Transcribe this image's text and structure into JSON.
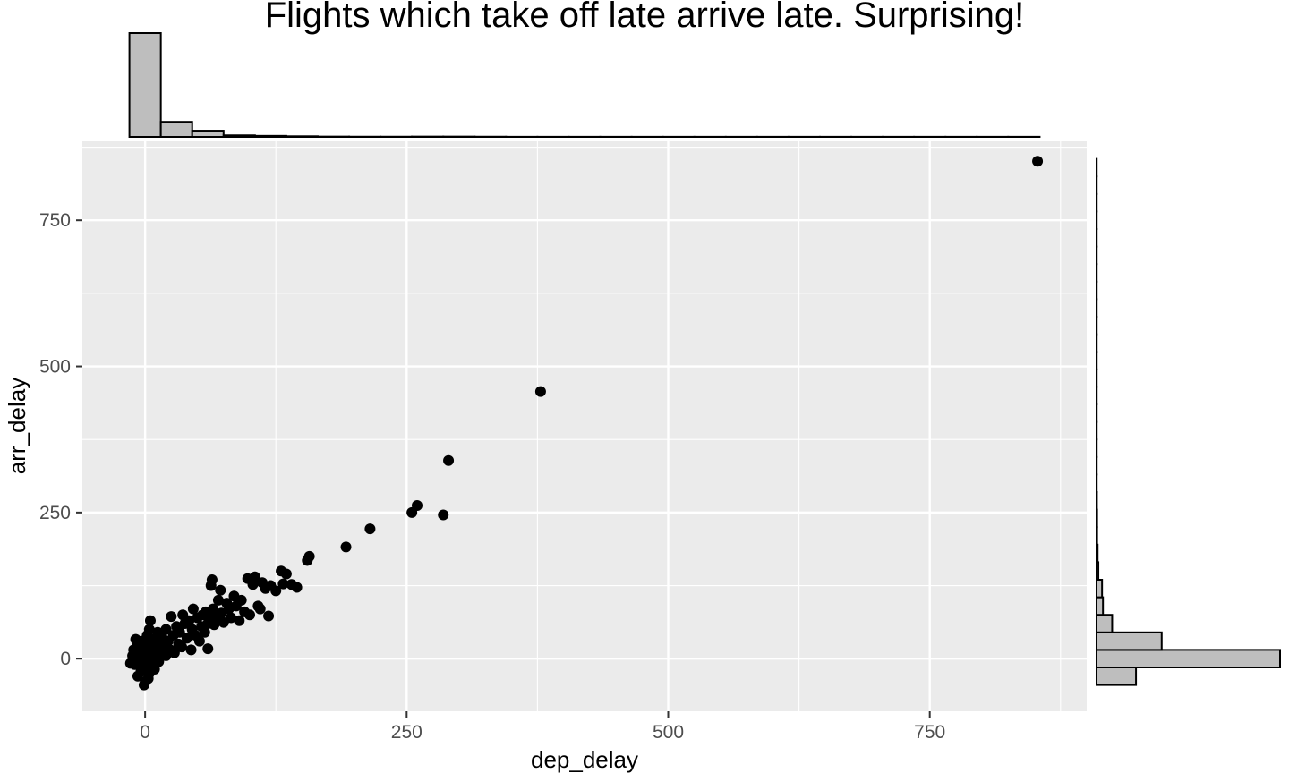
{
  "chart_data": {
    "type": "scatter",
    "title": "Flights which take off late arrive late. Surprising!",
    "xlabel": "dep_delay",
    "ylabel": "arr_delay",
    "xlim": [
      -60,
      900
    ],
    "ylim": [
      -90,
      885
    ],
    "x_ticks": [
      0,
      250,
      500,
      750
    ],
    "y_ticks": [
      0,
      250,
      500,
      750
    ],
    "grid": true,
    "colors": {
      "panel": "#ebebeb",
      "grid": "#ffffff",
      "point": "#000000",
      "hist_fill": "#bebebe",
      "hist_stroke": "#000000"
    },
    "points": [
      [
        -12,
        5
      ],
      [
        -10,
        -10
      ],
      [
        -8,
        20
      ],
      [
        -7,
        -30
      ],
      [
        -6,
        0
      ],
      [
        -5,
        12
      ],
      [
        -4,
        -22
      ],
      [
        -3,
        30
      ],
      [
        -2,
        8
      ],
      [
        -1,
        -5
      ],
      [
        0,
        15
      ],
      [
        0,
        -40
      ],
      [
        1,
        25
      ],
      [
        2,
        -15
      ],
      [
        2,
        40
      ],
      [
        3,
        5
      ],
      [
        4,
        -25
      ],
      [
        5,
        18
      ],
      [
        5,
        65
      ],
      [
        6,
        -8
      ],
      [
        7,
        30
      ],
      [
        8,
        10
      ],
      [
        9,
        -18
      ],
      [
        10,
        35
      ],
      [
        10,
        22
      ],
      [
        11,
        2
      ],
      [
        12,
        45
      ],
      [
        13,
        -5
      ],
      [
        14,
        28
      ],
      [
        15,
        12
      ],
      [
        -9,
        33
      ],
      [
        -6,
        18
      ],
      [
        -3,
        -12
      ],
      [
        0,
        2
      ],
      [
        3,
        -34
      ],
      [
        6,
        8
      ],
      [
        -14,
        -8
      ],
      [
        -11,
        15
      ],
      [
        -1,
        -45
      ],
      [
        4,
        50
      ],
      [
        16,
        38
      ],
      [
        18,
        20
      ],
      [
        20,
        50
      ],
      [
        20,
        5
      ],
      [
        22,
        30
      ],
      [
        24,
        15
      ],
      [
        25,
        72
      ],
      [
        27,
        40
      ],
      [
        28,
        10
      ],
      [
        30,
        55
      ],
      [
        32,
        25
      ],
      [
        33,
        45
      ],
      [
        35,
        20
      ],
      [
        36,
        75
      ],
      [
        38,
        60
      ],
      [
        40,
        35
      ],
      [
        42,
        65
      ],
      [
        44,
        15
      ],
      [
        45,
        50
      ],
      [
        46,
        85
      ],
      [
        48,
        40
      ],
      [
        50,
        70
      ],
      [
        52,
        30
      ],
      [
        54,
        55
      ],
      [
        55,
        75
      ],
      [
        57,
        45
      ],
      [
        58,
        80
      ],
      [
        60,
        60
      ],
      [
        60,
        17
      ],
      [
        62,
        70
      ],
      [
        63,
        125
      ],
      [
        64,
        135
      ],
      [
        65,
        85
      ],
      [
        66,
        58
      ],
      [
        68,
        72
      ],
      [
        70,
        100
      ],
      [
        72,
        117
      ],
      [
        73,
        78
      ],
      [
        75,
        62
      ],
      [
        78,
        95
      ],
      [
        80,
        85
      ],
      [
        82,
        70
      ],
      [
        85,
        107
      ],
      [
        87,
        90
      ],
      [
        90,
        65
      ],
      [
        92,
        100
      ],
      [
        95,
        80
      ],
      [
        98,
        137
      ],
      [
        100,
        75
      ],
      [
        103,
        127
      ],
      [
        105,
        140
      ],
      [
        108,
        90
      ],
      [
        110,
        85
      ],
      [
        112,
        130
      ],
      [
        115,
        120
      ],
      [
        118,
        73
      ],
      [
        120,
        125
      ],
      [
        125,
        116
      ],
      [
        130,
        150
      ],
      [
        132,
        128
      ],
      [
        135,
        145
      ],
      [
        140,
        127
      ],
      [
        145,
        122
      ],
      [
        155,
        168
      ],
      [
        157,
        175
      ],
      [
        192,
        191
      ],
      [
        215,
        222
      ],
      [
        255,
        250
      ],
      [
        260,
        262
      ],
      [
        285,
        246
      ],
      [
        290,
        339
      ],
      [
        378,
        457
      ],
      [
        853,
        851
      ]
    ],
    "top_histogram": {
      "bin_width": 30,
      "bins": [
        {
          "x0": -15,
          "x1": 15,
          "count": 1000
        },
        {
          "x0": 15,
          "x1": 45,
          "count": 145
        },
        {
          "x0": 45,
          "x1": 75,
          "count": 60
        },
        {
          "x0": 75,
          "x1": 105,
          "count": 15
        },
        {
          "x0": 105,
          "x1": 135,
          "count": 10
        },
        {
          "x0": 135,
          "x1": 165,
          "count": 6
        },
        {
          "x0": 165,
          "x1": 195,
          "count": 3
        },
        {
          "x0": 195,
          "x1": 225,
          "count": 2
        },
        {
          "x0": 225,
          "x1": 255,
          "count": 2
        },
        {
          "x0": 255,
          "x1": 285,
          "count": 3
        },
        {
          "x0": 285,
          "x1": 315,
          "count": 3
        },
        {
          "x0": 315,
          "x1": 345,
          "count": 2
        },
        {
          "x0": 345,
          "x1": 375,
          "count": 1
        },
        {
          "x0": 375,
          "x1": 405,
          "count": 1
        },
        {
          "x0": 405,
          "x1": 435,
          "count": 1
        },
        {
          "x0": 435,
          "x1": 465,
          "count": 1
        },
        {
          "x0": 465,
          "x1": 495,
          "count": 1
        },
        {
          "x0": 495,
          "x1": 525,
          "count": 1
        },
        {
          "x0": 525,
          "x1": 555,
          "count": 1
        },
        {
          "x0": 555,
          "x1": 585,
          "count": 1
        },
        {
          "x0": 585,
          "x1": 615,
          "count": 1
        },
        {
          "x0": 615,
          "x1": 645,
          "count": 1
        },
        {
          "x0": 645,
          "x1": 675,
          "count": 1
        },
        {
          "x0": 675,
          "x1": 705,
          "count": 1
        },
        {
          "x0": 705,
          "x1": 735,
          "count": 1
        },
        {
          "x0": 735,
          "x1": 765,
          "count": 1
        },
        {
          "x0": 765,
          "x1": 795,
          "count": 1
        },
        {
          "x0": 795,
          "x1": 825,
          "count": 1
        },
        {
          "x0": 825,
          "x1": 855,
          "count": 1
        }
      ]
    },
    "right_histogram": {
      "bin_width": 30,
      "bins": [
        {
          "y0": -45,
          "y1": -15,
          "count": 215
        },
        {
          "y0": -15,
          "y1": 15,
          "count": 1000
        },
        {
          "y0": 15,
          "y1": 45,
          "count": 355
        },
        {
          "y0": 45,
          "y1": 75,
          "count": 85
        },
        {
          "y0": 75,
          "y1": 105,
          "count": 35
        },
        {
          "y0": 105,
          "y1": 135,
          "count": 30
        },
        {
          "y0": 135,
          "y1": 165,
          "count": 10
        },
        {
          "y0": 165,
          "y1": 195,
          "count": 6
        },
        {
          "y0": 195,
          "y1": 225,
          "count": 3
        },
        {
          "y0": 225,
          "y1": 255,
          "count": 3
        },
        {
          "y0": 255,
          "y1": 285,
          "count": 2
        },
        {
          "y0": 285,
          "y1": 315,
          "count": 1
        },
        {
          "y0": 315,
          "y1": 345,
          "count": 1
        },
        {
          "y0": 345,
          "y1": 375,
          "count": 1
        },
        {
          "y0": 375,
          "y1": 405,
          "count": 1
        },
        {
          "y0": 405,
          "y1": 435,
          "count": 1
        },
        {
          "y0": 435,
          "y1": 465,
          "count": 1
        },
        {
          "y0": 465,
          "y1": 495,
          "count": 1
        },
        {
          "y0": 495,
          "y1": 525,
          "count": 1
        },
        {
          "y0": 525,
          "y1": 555,
          "count": 1
        },
        {
          "y0": 555,
          "y1": 585,
          "count": 1
        },
        {
          "y0": 585,
          "y1": 615,
          "count": 1
        },
        {
          "y0": 615,
          "y1": 645,
          "count": 1
        },
        {
          "y0": 645,
          "y1": 675,
          "count": 1
        },
        {
          "y0": 675,
          "y1": 705,
          "count": 1
        },
        {
          "y0": 705,
          "y1": 735,
          "count": 1
        },
        {
          "y0": 735,
          "y1": 765,
          "count": 1
        },
        {
          "y0": 765,
          "y1": 795,
          "count": 1
        },
        {
          "y0": 795,
          "y1": 825,
          "count": 1
        },
        {
          "y0": 825,
          "y1": 855,
          "count": 1
        }
      ]
    }
  }
}
